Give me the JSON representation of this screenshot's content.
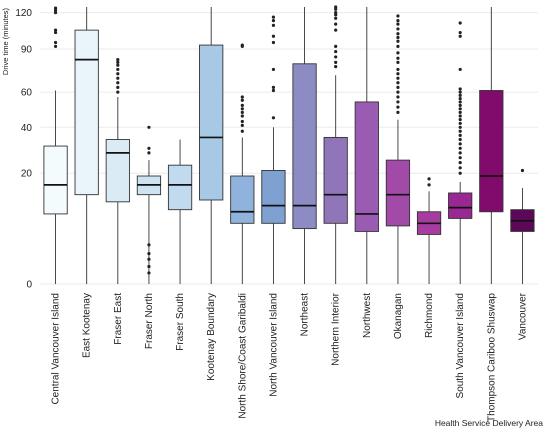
{
  "chart_data": {
    "type": "box",
    "ylabel": "Drive time (minutes)",
    "xlabel": "Health Service Delivery Area",
    "ylim": [
      0,
      125
    ],
    "yticks": [
      0,
      20,
      40,
      60,
      90,
      120
    ],
    "y_scale": "square-root",
    "grid": "horizontal",
    "legend": "none",
    "categories": [
      "Central Vancouver Island",
      "East Kootenay",
      "Fraser East",
      "Fraser North",
      "Fraser South",
      "Kootenay Boundary",
      "North Shore/Coast Garibaldi",
      "North Vancouver Island",
      "Northeast",
      "Northern Interior",
      "Northwest",
      "Okanagan",
      "Richmond",
      "South Vancouver Island",
      "Thompson Cariboo Shuswap",
      "Vancouver"
    ],
    "boxes": [
      {
        "whislo": 0,
        "q1": 8,
        "med": 16,
        "q3": 31,
        "whishi": 61,
        "outliers": [
          92,
          95,
          103,
          105,
          120,
          122,
          124
        ]
      },
      {
        "whislo": 0,
        "q1": 13,
        "med": 82,
        "q3": 105,
        "whishi": 125,
        "outliers": []
      },
      {
        "whislo": 0,
        "q1": 11,
        "med": 28,
        "q3": 34,
        "whishi": 57,
        "outliers": [
          60,
          63,
          66,
          69,
          72,
          75,
          78,
          80,
          82
        ]
      },
      {
        "whislo": 0,
        "q1": 13,
        "med": 16,
        "q3": 19,
        "whishi": 25,
        "outliers": [
          0.2,
          0.5,
          1,
          1.5,
          2.5,
          28,
          30,
          40
        ]
      },
      {
        "whislo": 0,
        "q1": 9,
        "med": 16,
        "q3": 23,
        "whishi": 34,
        "outliers": []
      },
      {
        "whislo": 0,
        "q1": 11.5,
        "med": 35,
        "q3": 93,
        "whishi": 125,
        "outliers": []
      },
      {
        "whislo": 0,
        "q1": 6,
        "med": 8.5,
        "q3": 19,
        "whishi": 35,
        "outliers": [
          38,
          41,
          43,
          46,
          48,
          50,
          52,
          55,
          57,
          92,
          93
        ]
      },
      {
        "whislo": 0,
        "q1": 6,
        "med": 10,
        "q3": 21,
        "whishi": 40,
        "outliers": [
          45,
          61,
          63,
          75,
          95,
          100,
          109,
          113,
          116
        ]
      },
      {
        "whislo": 0,
        "q1": 5,
        "med": 10,
        "q3": 79,
        "whishi": 125,
        "outliers": []
      },
      {
        "whislo": 0,
        "q1": 6,
        "med": 13,
        "q3": 35,
        "whishi": 71,
        "outliers": [
          77,
          80,
          84,
          88,
          92,
          105,
          110,
          115,
          118,
          120,
          123,
          125
        ]
      },
      {
        "whislo": 0,
        "q1": 4.5,
        "med": 8,
        "q3": 54,
        "whishi": 125,
        "outliers": []
      },
      {
        "whislo": 0,
        "q1": 5.5,
        "med": 13,
        "q3": 25,
        "whishi": 44,
        "outliers": [
          48,
          51,
          54,
          57,
          60,
          63,
          66,
          69,
          72,
          75,
          80,
          83,
          87,
          92,
          96,
          99,
          102,
          106,
          110,
          113,
          117
        ]
      },
      {
        "whislo": 0,
        "q1": 4,
        "med": 6,
        "q3": 8.5,
        "whishi": 14,
        "outliers": [
          16,
          18
        ]
      },
      {
        "whislo": 0,
        "q1": 7,
        "med": 9.5,
        "q3": 13.5,
        "whishi": 17,
        "outliers": [
          20,
          22,
          24,
          26,
          28,
          30,
          32,
          34,
          36,
          38,
          40,
          42,
          44,
          46,
          48,
          50,
          52,
          54,
          56,
          58,
          60,
          62,
          75,
          100,
          103,
          111
        ]
      },
      {
        "whislo": 0,
        "q1": 8.5,
        "med": 19,
        "q3": 61,
        "whishi": 125,
        "outliers": []
      },
      {
        "whislo": 0,
        "q1": 4.5,
        "med": 6.5,
        "q3": 9,
        "whishi": 15,
        "outliers": [
          21
        ]
      }
    ],
    "colors": [
      "#f4fbfd",
      "#e9f5fb",
      "#dbebf6",
      "#cee3f2",
      "#c2daee",
      "#a8c9e6",
      "#8fb3dc",
      "#7ea1d1",
      "#8c8bc3",
      "#9075b9",
      "#9a5cb2",
      "#a24aa8",
      "#a63c9f",
      "#9a2893",
      "#810b6c",
      "#5c0858"
    ]
  }
}
